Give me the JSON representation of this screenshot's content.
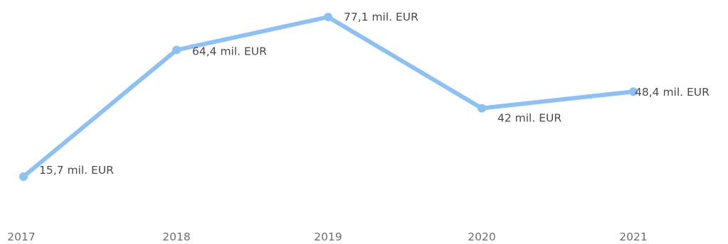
{
  "chart_data": {
    "type": "line",
    "x": [
      "2017",
      "2018",
      "2019",
      "2020",
      "2021"
    ],
    "series": [
      {
        "values": [
          15.7,
          64.4,
          77.1,
          42,
          48.4
        ],
        "labels": [
          "15,7 mil. EUR",
          "64,4 mil. EUR",
          "77,1 mil. EUR",
          "42 mil. EUR",
          "48,4 mil. EUR"
        ],
        "color": "#8ec0f2"
      }
    ],
    "title": "",
    "xlabel": "",
    "ylabel": "",
    "ylim": [
      0,
      85
    ],
    "grid": false,
    "legend": "none"
  }
}
